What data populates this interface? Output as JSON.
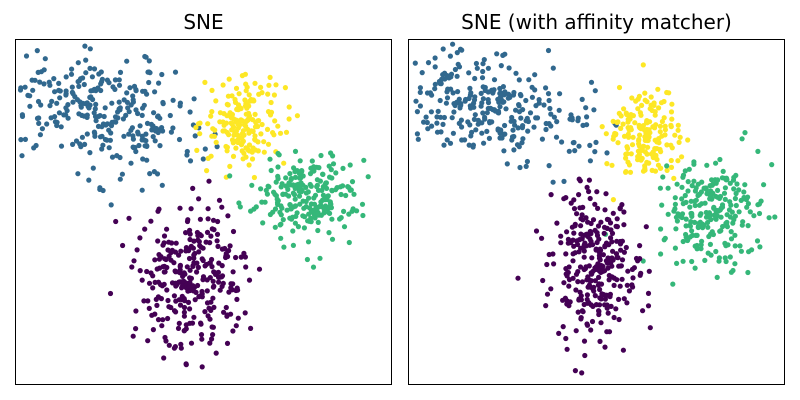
{
  "colors": {
    "cluster_0": "#440154",
    "cluster_1": "#31688e",
    "cluster_2": "#35b779",
    "cluster_3": "#fde725"
  },
  "chart_data": [
    {
      "type": "scatter",
      "title": "SNE",
      "xlabel": "",
      "ylabel": "",
      "grid": false,
      "axis_ticks": false,
      "clusters": [
        {
          "color": "#31688e",
          "center": [
            -0.55,
            0.55
          ],
          "spread": [
            0.28,
            0.16
          ],
          "tilt": -0.35,
          "count": 300
        },
        {
          "color": "#fde725",
          "center": [
            0.22,
            0.5
          ],
          "spread": [
            0.11,
            0.13
          ],
          "tilt": 0.0,
          "count": 175
        },
        {
          "color": "#35b779",
          "center": [
            0.55,
            0.05
          ],
          "spread": [
            0.14,
            0.13
          ],
          "tilt": 0.0,
          "count": 240
        },
        {
          "color": "#440154",
          "center": [
            -0.05,
            -0.45
          ],
          "spread": [
            0.14,
            0.22
          ],
          "tilt": 0.0,
          "count": 300
        }
      ],
      "xlim": [
        -1.0,
        1.0
      ],
      "ylim": [
        -1.1,
        1.0
      ]
    },
    {
      "type": "scatter",
      "title": "SNE (with affinity matcher)",
      "xlabel": "",
      "ylabel": "",
      "grid": false,
      "axis_ticks": false,
      "clusters": [
        {
          "color": "#31688e",
          "center": [
            -0.55,
            0.58
          ],
          "spread": [
            0.27,
            0.16
          ],
          "tilt": -0.3,
          "count": 300
        },
        {
          "color": "#fde725",
          "center": [
            0.25,
            0.4
          ],
          "spread": [
            0.1,
            0.14
          ],
          "tilt": 0.0,
          "count": 175
        },
        {
          "color": "#35b779",
          "center": [
            0.62,
            -0.05
          ],
          "spread": [
            0.13,
            0.15
          ],
          "tilt": 0.0,
          "count": 240
        },
        {
          "color": "#440154",
          "center": [
            -0.02,
            -0.4
          ],
          "spread": [
            0.12,
            0.22
          ],
          "tilt": 0.0,
          "count": 300
        }
      ],
      "xlim": [
        -1.0,
        1.0
      ],
      "ylim": [
        -1.1,
        1.0
      ]
    }
  ]
}
